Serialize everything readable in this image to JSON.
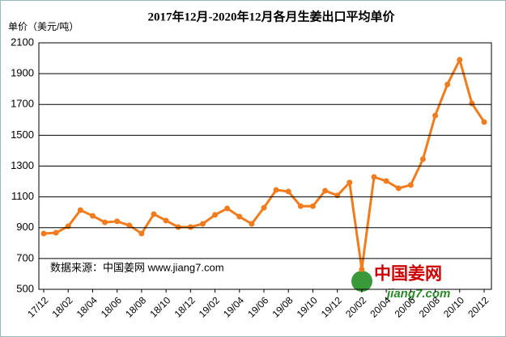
{
  "chart_data": {
    "type": "line",
    "title": "2017年12月-2020年12月各月生姜出口平均单价",
    "y_label": "单价（美元/吨）",
    "source_note": "数据来源：中国姜网 www.jiang7.com",
    "logo_text": "中国姜网",
    "logo_url": "jiang7.com",
    "categories": [
      "17/12",
      null,
      "18/02",
      null,
      "18/04",
      null,
      "18/06",
      null,
      "18/08",
      null,
      "18/10",
      null,
      "18/12",
      null,
      "19/02",
      null,
      "19/04",
      null,
      "19/06",
      null,
      "19/08",
      null,
      "19/10",
      null,
      "19/12",
      null,
      "20/02",
      null,
      "20/04",
      null,
      "20/06",
      null,
      "20/08",
      null,
      "20/10",
      null,
      "20/12"
    ],
    "series": [
      {
        "name": "单价",
        "color": "#f07c1e",
        "values": [
          862,
          867,
          909,
          1014,
          977,
          935,
          941,
          915,
          862,
          988,
          946,
          904,
          904,
          925,
          983,
          1025,
          972,
          925,
          1030,
          1145,
          1135,
          1040,
          1040,
          1140,
          1109,
          1193,
          630,
          1229,
          1203,
          1156,
          1177,
          1345,
          1628,
          1830,
          1990,
          1707,
          1586
        ]
      }
    ],
    "ylim": [
      500,
      2100
    ],
    "yticks": [
      500,
      700,
      900,
      1100,
      1300,
      1500,
      1700,
      1900,
      2100
    ],
    "grid": true
  }
}
